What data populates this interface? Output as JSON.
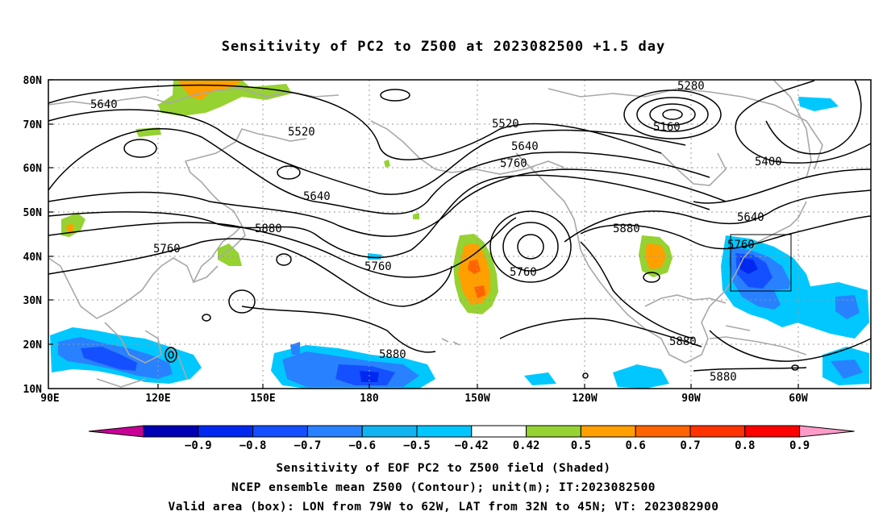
{
  "title": "Sensitivity of PC2 to Z500 at 2023082500 +1.5 day",
  "lat_labels": [
    "80N",
    "70N",
    "60N",
    "50N",
    "40N",
    "30N",
    "20N",
    "10N"
  ],
  "lon_labels": [
    "90E",
    "120E",
    "150E",
    "180",
    "150W",
    "120W",
    "90W",
    "60W"
  ],
  "contours": [
    {
      "label": "5640",
      "value": 5640
    },
    {
      "label": "5520",
      "value": 5520
    },
    {
      "label": "5520",
      "value": 5520
    },
    {
      "label": "5280",
      "value": 5280
    },
    {
      "label": "5160",
      "value": 5160
    },
    {
      "label": "5640",
      "value": 5640
    },
    {
      "label": "5760",
      "value": 5760
    },
    {
      "label": "5400",
      "value": 5400
    },
    {
      "label": "5640",
      "value": 5640
    },
    {
      "label": "5640",
      "value": 5640
    },
    {
      "label": "5880",
      "value": 5880
    },
    {
      "label": "5760",
      "value": 5760
    },
    {
      "label": "5880",
      "value": 5880
    },
    {
      "label": "5760",
      "value": 5760
    },
    {
      "label": "5760",
      "value": 5760
    },
    {
      "label": "5760",
      "value": 5760
    },
    {
      "label": "5880",
      "value": 5880
    },
    {
      "label": "5880",
      "value": 5880
    },
    {
      "label": "5880",
      "value": 5880
    }
  ],
  "colorbar": {
    "labels": [
      "-0.9",
      "-0.8",
      "-0.7",
      "-0.6",
      "-0.5",
      "-0.42",
      "0.42",
      "0.5",
      "0.6",
      "0.7",
      "0.8",
      "0.9"
    ],
    "colors": [
      "#0000b4",
      "#0028f0",
      "#1450ff",
      "#2882ff",
      "#0fb4f0",
      "#00c8ff",
      "#ffffff",
      "#96d232",
      "#ffa000",
      "#ff6400",
      "#ff3200",
      "#ff0000"
    ],
    "arrow_left": "#c80096",
    "arrow_right": "#ff9bc8"
  },
  "captions": [
    "Sensitivity of EOF PC2 to Z500 field (Shaded)",
    "NCEP ensemble mean Z500 (Contour); unit(m); IT:2023082500",
    "Valid area (box): LON from 79W to 62W, LAT from 32N to 45N; VT: 2023082900"
  ]
}
